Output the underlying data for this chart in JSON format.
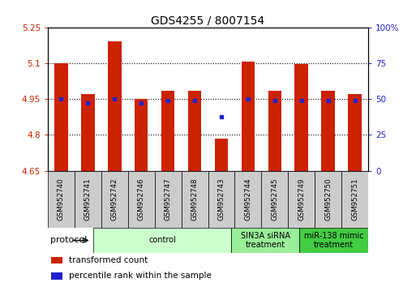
{
  "title": "GDS4255 / 8007154",
  "samples": [
    "GSM952740",
    "GSM952741",
    "GSM952742",
    "GSM952746",
    "GSM952747",
    "GSM952748",
    "GSM952743",
    "GSM952744",
    "GSM952745",
    "GSM952749",
    "GSM952750",
    "GSM952751"
  ],
  "bar_values": [
    5.1,
    4.97,
    5.19,
    4.95,
    4.985,
    4.985,
    4.785,
    5.105,
    4.985,
    5.095,
    4.985,
    4.97
  ],
  "bar_bottom": 4.65,
  "percentile_values": [
    4.95,
    4.935,
    4.95,
    4.935,
    4.945,
    4.945,
    4.875,
    4.95,
    4.942,
    4.942,
    4.945,
    4.945
  ],
  "bar_color": "#cc2200",
  "percentile_color": "#2222cc",
  "ylim_left": [
    4.65,
    5.25
  ],
  "ylim_right": [
    0,
    100
  ],
  "yticks_left": [
    4.65,
    4.8,
    4.95,
    5.1,
    5.25
  ],
  "ytick_labels_left": [
    "4.65",
    "4.8",
    "4.95",
    "5.1",
    "5.25"
  ],
  "yticks_right": [
    0,
    25,
    50,
    75,
    100
  ],
  "ytick_labels_right": [
    "0",
    "25",
    "50",
    "75",
    "100%"
  ],
  "grid_ticks": [
    4.8,
    4.95,
    5.1
  ],
  "groups": [
    {
      "label": "control",
      "start": 0,
      "end": 6,
      "color": "#ccffcc"
    },
    {
      "label": "SIN3A siRNA\ntreatment",
      "start": 6,
      "end": 9,
      "color": "#99ee99"
    },
    {
      "label": "miR-138 mimic\ntreatment",
      "start": 9,
      "end": 12,
      "color": "#44cc44"
    }
  ],
  "protocol_label": "protocol",
  "legend_items": [
    {
      "label": "transformed count",
      "color": "#cc2200"
    },
    {
      "label": "percentile rank within the sample",
      "color": "#2222cc"
    }
  ],
  "left_tick_color": "#cc2200",
  "right_tick_color": "#2222cc",
  "title_fontsize": 10,
  "tick_fontsize": 7.5,
  "label_fontsize": 7,
  "bar_width": 0.5
}
